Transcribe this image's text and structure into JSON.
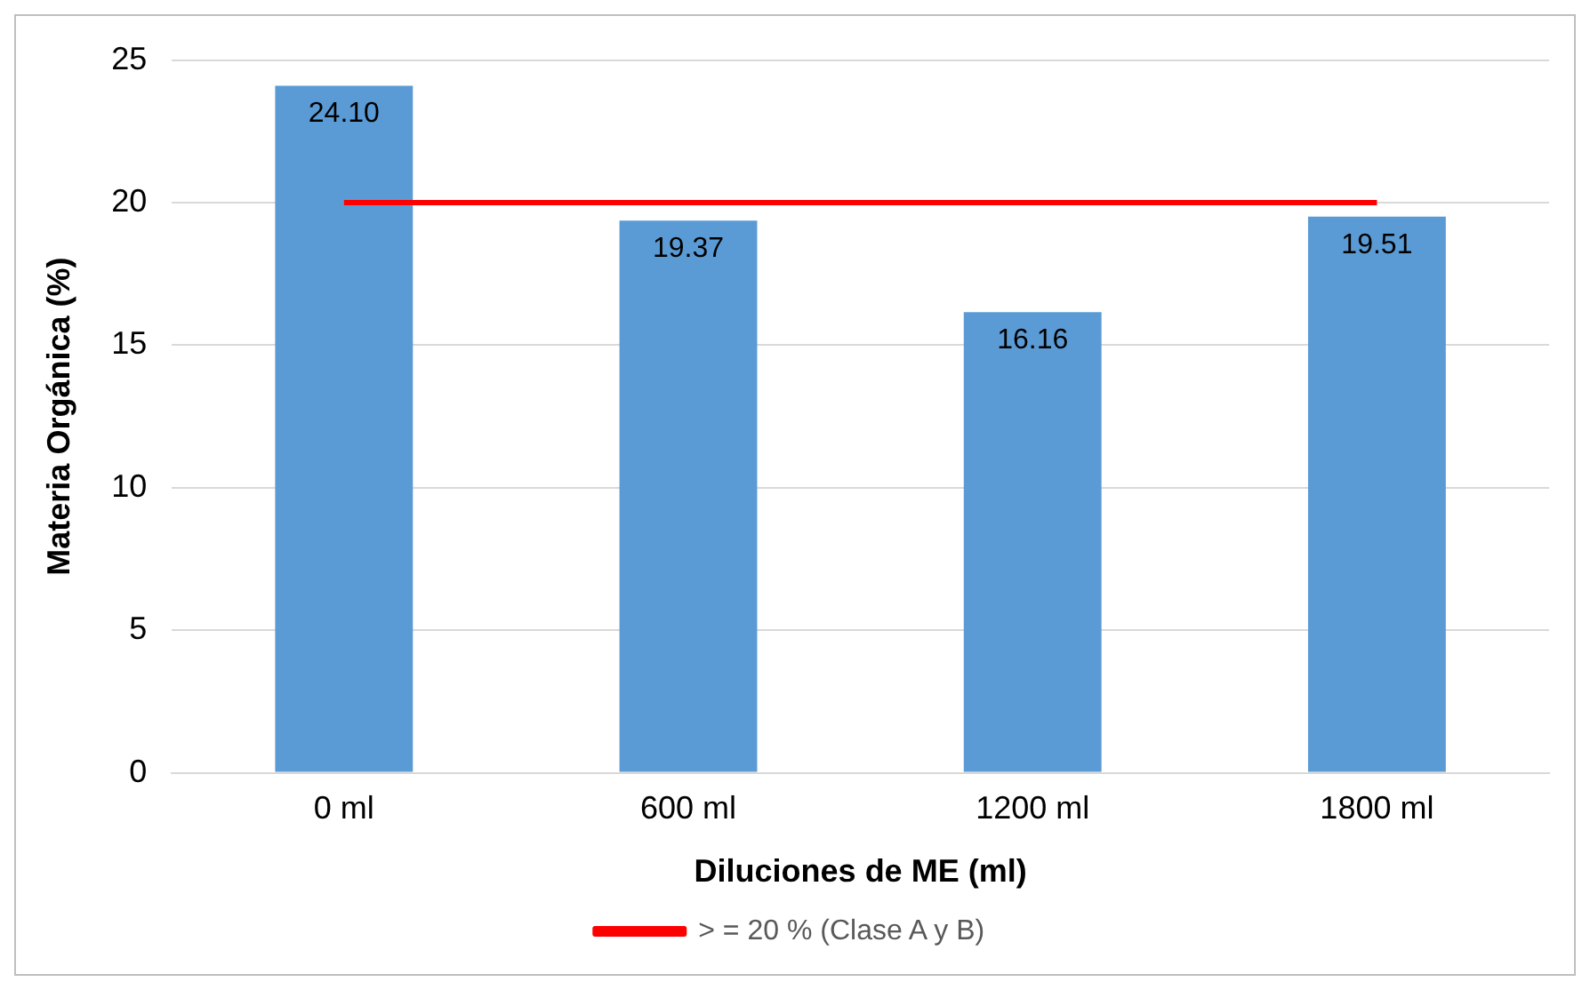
{
  "chart_data": {
    "type": "bar",
    "xlabel": "Diluciones de ME (ml)",
    "ylabel": "Materia Orgánica (%)",
    "categories": [
      "0 ml",
      "600 ml",
      "1200 ml",
      "1800 ml"
    ],
    "series": [
      {
        "color": "#5b9bd5",
        "values": [
          24.1,
          19.37,
          16.16,
          19.51
        ],
        "value_labels": [
          "24.10",
          "19.37",
          "16.16",
          "19.51"
        ]
      },
      {
        "type": "line",
        "name": "> = 20 % (Clase A y B)",
        "color": "#ff0000",
        "values": [
          20,
          20,
          20,
          20
        ]
      }
    ],
    "ylim": [
      0,
      25
    ],
    "yticks": [
      0,
      5,
      10,
      15,
      20,
      25
    ],
    "grid": "y",
    "legend": "bottom",
    "marker": "none"
  }
}
